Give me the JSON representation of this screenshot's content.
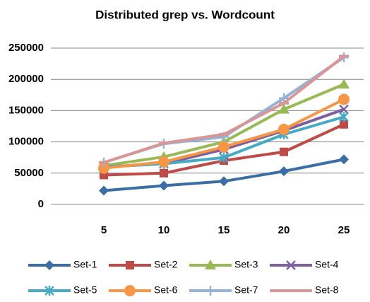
{
  "chart_data": {
    "type": "line",
    "title": "Distributed grep vs. Wordcount",
    "categories": [
      "5",
      "10",
      "15",
      "20",
      "25"
    ],
    "series": [
      {
        "name": "Set-1",
        "color": "#3a6ea5",
        "marker": "diamond",
        "values": [
          22000,
          30000,
          37000,
          53000,
          72000
        ]
      },
      {
        "name": "Set-2",
        "color": "#be4b48",
        "marker": "square",
        "values": [
          47000,
          50000,
          70000,
          84000,
          128000
        ]
      },
      {
        "name": "Set-3",
        "color": "#98b954",
        "marker": "triangle",
        "values": [
          62000,
          76000,
          100000,
          152000,
          192000
        ]
      },
      {
        "name": "Set-4",
        "color": "#7d60a0",
        "marker": "x",
        "values": [
          60000,
          65000,
          88000,
          118000,
          152000
        ]
      },
      {
        "name": "Set-5",
        "color": "#46aac5",
        "marker": "asterisk",
        "values": [
          60000,
          65000,
          75000,
          112000,
          140000
        ]
      },
      {
        "name": "Set-6",
        "color": "#f79646",
        "marker": "circle",
        "values": [
          58000,
          68000,
          92000,
          120000,
          168000
        ]
      },
      {
        "name": "Set-7",
        "color": "#95b3d7",
        "marker": "plus",
        "values": [
          67000,
          97000,
          108000,
          170000,
          235000
        ]
      },
      {
        "name": "Set-8",
        "color": "#d99694",
        "marker": "dash",
        "values": [
          67000,
          98000,
          112000,
          162000,
          237000
        ]
      }
    ],
    "ylim": [
      0,
      250000
    ],
    "yticks": [
      0,
      50000,
      100000,
      150000,
      200000,
      250000
    ],
    "grid": true,
    "legend": "bottom"
  }
}
